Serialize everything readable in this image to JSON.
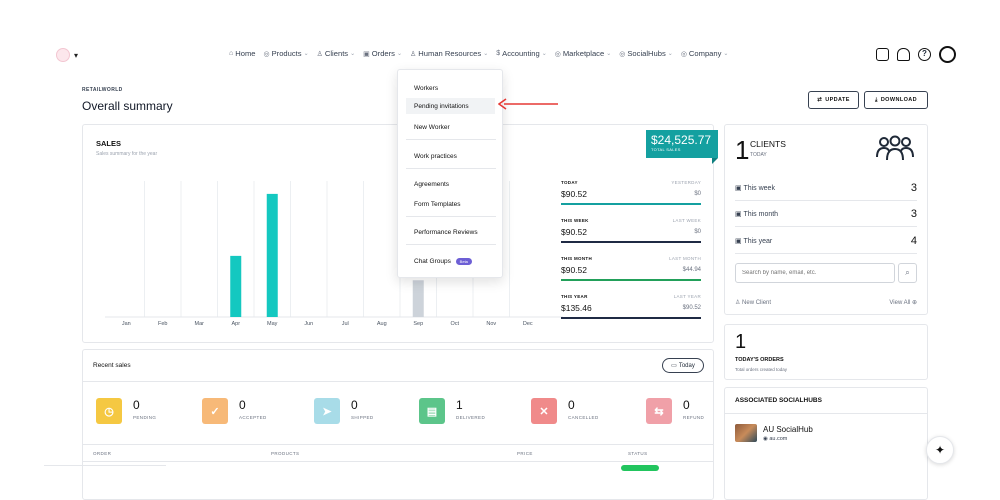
{
  "nav": {
    "menu": [
      {
        "icon": "home-icon",
        "label": "Home",
        "chevron": false
      },
      {
        "icon": "products-icon",
        "label": "Products",
        "chevron": true
      },
      {
        "icon": "clients-icon",
        "label": "Clients",
        "chevron": true
      },
      {
        "icon": "orders-icon",
        "label": "Orders",
        "chevron": true
      },
      {
        "icon": "hr-icon",
        "label": "Human Resources",
        "chevron": true
      },
      {
        "icon": "accounting-icon",
        "label": "Accounting",
        "chevron": true
      },
      {
        "icon": "marketplace-icon",
        "label": "Marketplace",
        "chevron": true
      },
      {
        "icon": "socialhubs-icon",
        "label": "SocialHubs",
        "chevron": true
      },
      {
        "icon": "company-icon",
        "label": "Company",
        "chevron": true
      }
    ]
  },
  "header": {
    "brand": "RETAILWORLD",
    "title": "Overall summary",
    "update_label": "UPDATE",
    "download_label": "DOWNLOAD"
  },
  "sales": {
    "title": "SALES",
    "subtitle": "Sales summary for the year",
    "total": "$24,525.77",
    "total_label": "TOTAL SALES",
    "stats": [
      {
        "label": "TODAY",
        "prev_label": "YESTERDAY",
        "value": "$90.52",
        "prev_value": "$0",
        "color": "#14a0a0"
      },
      {
        "label": "THIS WEEK",
        "prev_label": "LAST WEEK",
        "value": "$90.52",
        "prev_value": "$0",
        "color": "#1f2a44"
      },
      {
        "label": "THIS MONTH",
        "prev_label": "LAST MONTH",
        "value": "$90.52",
        "prev_value": "$44.94",
        "color": "#22a05a"
      },
      {
        "label": "THIS YEAR",
        "prev_label": "LAST YEAR",
        "value": "$135.46",
        "prev_value": "$90.52",
        "color": "#1f2a44"
      }
    ]
  },
  "chart_data": {
    "type": "bar",
    "categories": [
      "Jan",
      "Feb",
      "Mar",
      "Apr",
      "May",
      "Jun",
      "Jul",
      "Aug",
      "Sep",
      "Oct",
      "Nov",
      "Dec"
    ],
    "series": [
      {
        "values": [
          0,
          0,
          0,
          44.94,
          90.52,
          0,
          0,
          0,
          0,
          0,
          0,
          0
        ],
        "color": "#14c8c0"
      },
      {
        "values": [
          0,
          0,
          0,
          0,
          0,
          0,
          0,
          0,
          27,
          0,
          0,
          0
        ],
        "color": "#cdd3da"
      }
    ],
    "ylim": [
      0,
      100
    ],
    "grid": "vertical"
  },
  "recent": {
    "title": "Recent sales",
    "today_label": "Today",
    "statuses": [
      {
        "count": "0",
        "label": "PENDING",
        "color": "#f5c842",
        "icon": "clock-icon"
      },
      {
        "count": "0",
        "label": "ACCEPTED",
        "color": "#f7b978",
        "icon": "check-icon"
      },
      {
        "count": "0",
        "label": "SHIPPED",
        "color": "#a8dce8",
        "icon": "send-icon"
      },
      {
        "count": "1",
        "label": "DELIVERED",
        "color": "#5cc58a",
        "icon": "clipboard-check-icon"
      },
      {
        "count": "0",
        "label": "CANCELLED",
        "color": "#f08a8a",
        "icon": "x-icon"
      },
      {
        "count": "0",
        "label": "REFUND",
        "color": "#f0a0a8",
        "icon": "refund-icon"
      }
    ],
    "columns": [
      "ORDER",
      "PRODUCTS",
      "PRICE",
      "STATUS"
    ]
  },
  "clients": {
    "count": "1",
    "label": "CLIENTS",
    "sub": "TODAY",
    "rows": [
      {
        "label": "This week",
        "value": "3"
      },
      {
        "label": "This month",
        "value": "3"
      },
      {
        "label": "This year",
        "value": "4"
      }
    ],
    "search_placeholder": "Search by name, email, etc.",
    "new_client": "New Client",
    "view_all": "View All"
  },
  "orders": {
    "count": "1",
    "label": "TODAY'S ORDERS",
    "sub": "Total orders created today"
  },
  "socialhubs": {
    "title": "ASSOCIATED SOCIALHUBS",
    "name": "AU SocialHub",
    "url": "au.com"
  },
  "dropdown": {
    "items": [
      "Workers",
      "Pending invitations",
      "New Worker",
      "Work practices",
      "Agreements",
      "Form Templates",
      "Performance Reviews",
      "Chat Groups"
    ],
    "beta_label": "Beta"
  }
}
